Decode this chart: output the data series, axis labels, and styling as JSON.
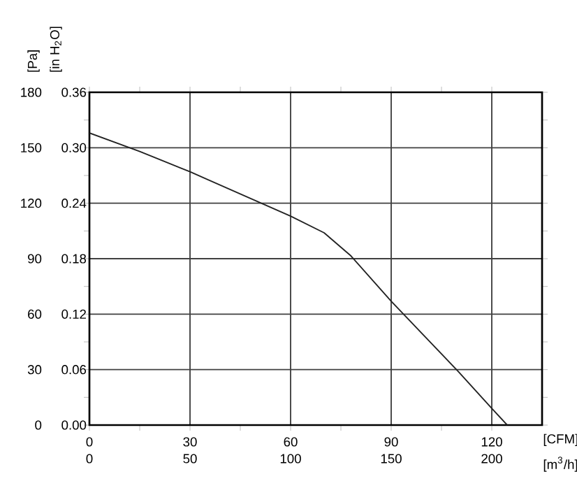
{
  "chart_data": {
    "type": "line",
    "xlabel": "[CFM]",
    "x2label": "[m$^{3}$/h]",
    "ylabel": "[Pa]",
    "y2label": "[in H$_{2}$O]",
    "x": [
      0,
      15,
      30,
      45,
      60,
      70,
      78,
      90,
      100,
      110,
      120,
      124.6
    ],
    "series": [
      {
        "color": "#222222",
        "values": [
          158,
          148,
          137,
          125,
          113,
          104,
          91.5,
          67,
          48,
          29,
          9,
          0
        ]
      }
    ],
    "xlim": [
      0,
      135
    ],
    "xticks": [
      0,
      30,
      60,
      90,
      120
    ],
    "x2lim": [
      0,
      225
    ],
    "x2ticks": [
      0,
      50,
      100,
      150,
      200
    ],
    "ylim": [
      0,
      180
    ],
    "yticks": [
      0,
      30,
      60,
      90,
      120,
      150,
      180
    ],
    "y2lim": [
      0,
      0.36
    ],
    "y2ticks": [
      {
        "value": 0,
        "label": "0.00"
      },
      {
        "value": 0.06,
        "label": "0.06"
      },
      {
        "value": 0.12,
        "label": "0.12"
      },
      {
        "value": 0.18,
        "label": "0.18"
      },
      {
        "value": 0.24,
        "label": "0.24"
      },
      {
        "value": 0.3,
        "label": "0.30"
      },
      {
        "value": 0.36,
        "label": "0.36"
      }
    ],
    "grid": true,
    "marker": "none",
    "line_style": "solid"
  }
}
